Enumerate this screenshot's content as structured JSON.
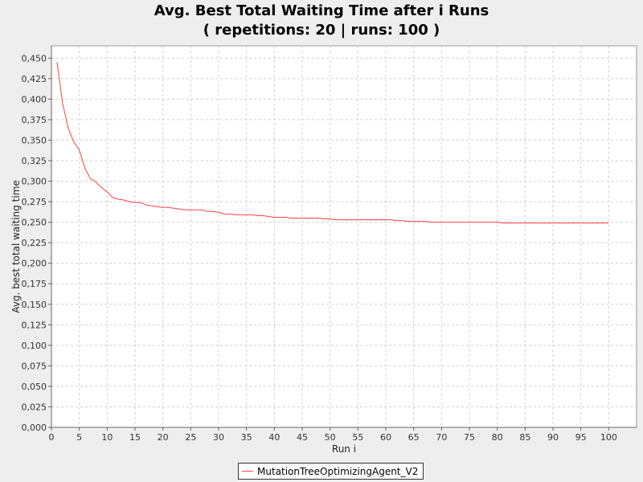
{
  "chart_data": {
    "type": "line",
    "title": "Avg. Best Total Waiting Time after i Runs",
    "subtitle": "( repetitions: 20 | runs: 100 )",
    "xlabel": "Run i",
    "ylabel": "Avg. best total waiting time",
    "xlim": [
      0,
      105
    ],
    "ylim": [
      0,
      0.465
    ],
    "x_ticks": [
      0,
      5,
      10,
      15,
      20,
      25,
      30,
      35,
      40,
      45,
      50,
      55,
      60,
      65,
      70,
      75,
      80,
      85,
      90,
      95,
      100
    ],
    "x_tick_labels": [
      "0",
      "5",
      "10",
      "15",
      "20",
      "25",
      "30",
      "35",
      "40",
      "45",
      "50",
      "55",
      "60",
      "65",
      "70",
      "75",
      "80",
      "85",
      "90",
      "95",
      "100"
    ],
    "y_ticks": [
      0,
      0.025,
      0.05,
      0.075,
      0.1,
      0.125,
      0.15,
      0.175,
      0.2,
      0.225,
      0.25,
      0.275,
      0.3,
      0.325,
      0.35,
      0.375,
      0.4,
      0.425,
      0.45
    ],
    "y_tick_labels": [
      "0,000",
      "0,025",
      "0,050",
      "0,075",
      "0,100",
      "0,125",
      "0,150",
      "0,175",
      "0,200",
      "0,225",
      "0,250",
      "0,275",
      "0,300",
      "0,325",
      "0,350",
      "0,375",
      "0,400",
      "0,425",
      "0,450"
    ],
    "grid": true,
    "legend_position": "bottom-center",
    "colors": {
      "series": "#ff4040",
      "plot_background": "#ffffff",
      "grid": "#d0d0d0",
      "page_background": "#eeeeee"
    },
    "series": [
      {
        "name": "MutationTreeOptimizingAgent_V2",
        "x": [
          1,
          2,
          3,
          4,
          5,
          6,
          7,
          8,
          9,
          10,
          11,
          12,
          13,
          14,
          15,
          16,
          17,
          18,
          19,
          20,
          21,
          22,
          23,
          24,
          25,
          26,
          27,
          28,
          29,
          30,
          31,
          32,
          33,
          34,
          35,
          36,
          37,
          38,
          39,
          40,
          41,
          42,
          43,
          44,
          45,
          46,
          47,
          48,
          49,
          50,
          51,
          52,
          53,
          54,
          55,
          56,
          57,
          58,
          59,
          60,
          61,
          62,
          63,
          64,
          65,
          66,
          67,
          68,
          69,
          70,
          71,
          72,
          73,
          74,
          75,
          76,
          77,
          78,
          79,
          80,
          81,
          82,
          83,
          84,
          85,
          86,
          87,
          88,
          89,
          90,
          91,
          92,
          93,
          94,
          95,
          96,
          97,
          98,
          99,
          100
        ],
        "y": [
          0.445,
          0.395,
          0.365,
          0.348,
          0.338,
          0.316,
          0.303,
          0.299,
          0.292,
          0.287,
          0.28,
          0.278,
          0.277,
          0.275,
          0.274,
          0.274,
          0.271,
          0.27,
          0.269,
          0.268,
          0.268,
          0.267,
          0.266,
          0.265,
          0.265,
          0.265,
          0.265,
          0.263,
          0.263,
          0.262,
          0.26,
          0.26,
          0.259,
          0.259,
          0.259,
          0.259,
          0.258,
          0.258,
          0.257,
          0.256,
          0.256,
          0.256,
          0.255,
          0.255,
          0.255,
          0.255,
          0.255,
          0.255,
          0.254,
          0.254,
          0.253,
          0.253,
          0.253,
          0.253,
          0.253,
          0.253,
          0.253,
          0.253,
          0.253,
          0.253,
          0.253,
          0.252,
          0.252,
          0.251,
          0.251,
          0.251,
          0.251,
          0.25,
          0.25,
          0.25,
          0.25,
          0.25,
          0.25,
          0.25,
          0.25,
          0.25,
          0.25,
          0.25,
          0.25,
          0.25,
          0.249,
          0.249,
          0.249,
          0.249,
          0.249,
          0.249,
          0.249,
          0.249,
          0.249,
          0.249,
          0.249,
          0.249,
          0.249,
          0.249,
          0.249,
          0.249,
          0.249,
          0.249,
          0.249,
          0.249
        ]
      }
    ]
  }
}
